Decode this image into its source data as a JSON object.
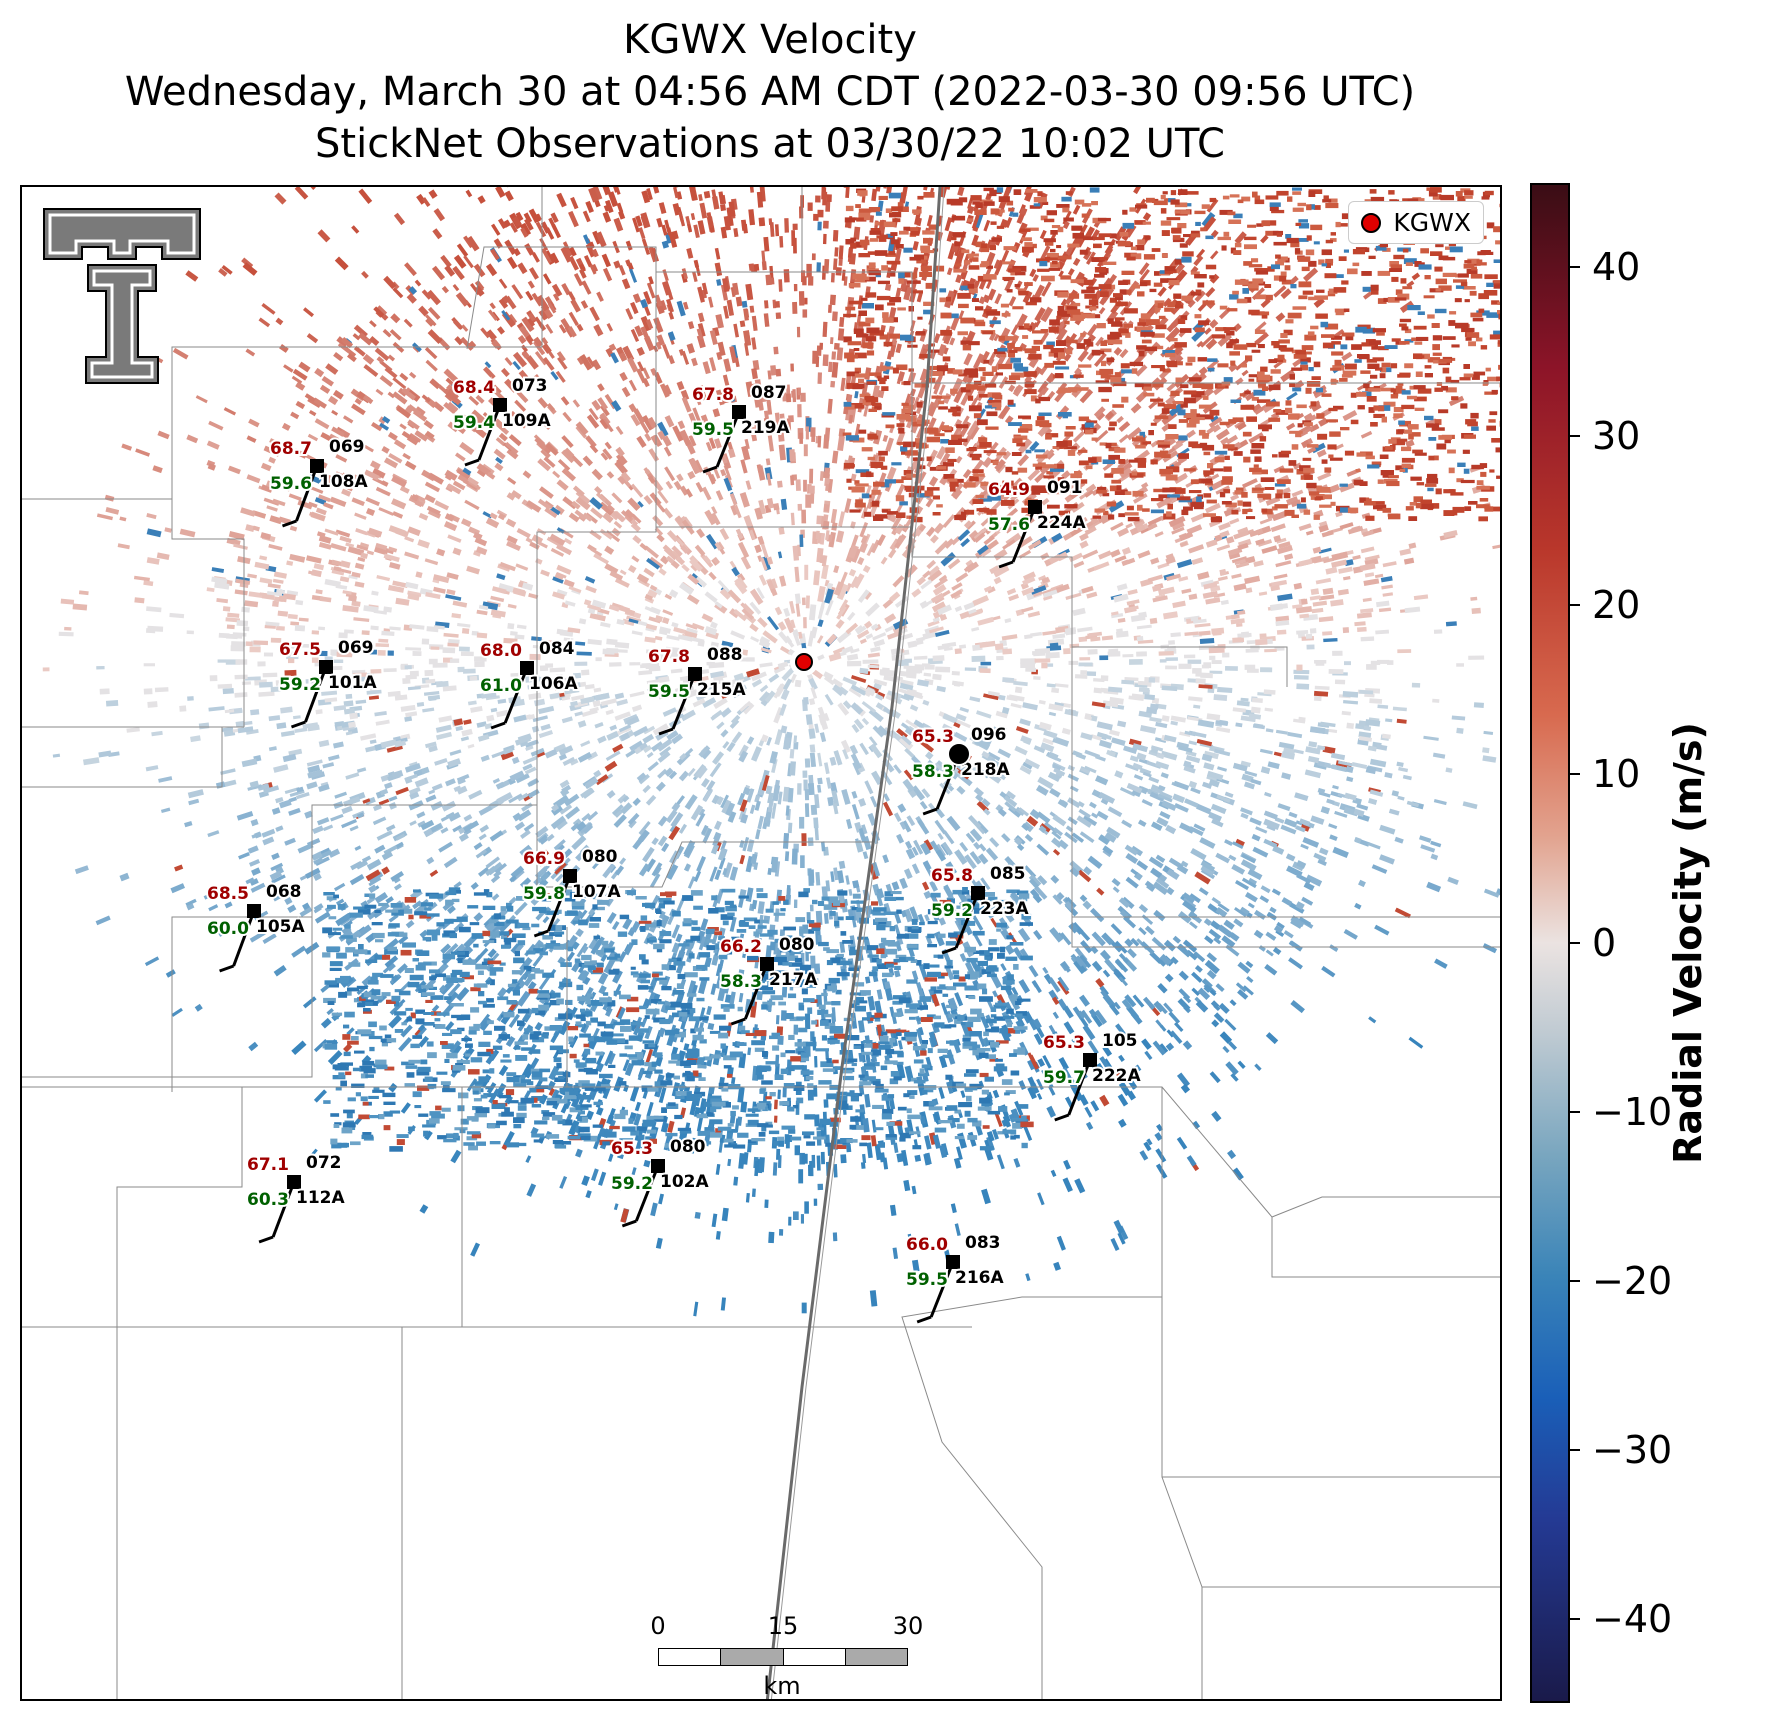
{
  "title": {
    "line1": "KGWX Velocity",
    "line2": "Wednesday, March 30 at 04:56 AM CDT (2022-03-30 09:56 UTC)",
    "line3": "StickNet Observations at 03/30/22 10:02 UTC"
  },
  "legend": {
    "label": "KGWX",
    "marker_color": "#e00000"
  },
  "logo": {
    "name": "texas-tech-double-t-logo"
  },
  "radar": {
    "name": "KGWX",
    "shown_in_legend": true
  },
  "colors": {
    "temp_text": "#a00000",
    "dewpoint_text": "#006000",
    "station_text": "#000000"
  },
  "colorbar": {
    "title": "Radial Velocity (m/s)",
    "min": -45,
    "max": 45,
    "ticks": [
      {
        "value": 40,
        "label": "40"
      },
      {
        "value": 30,
        "label": "30"
      },
      {
        "value": 20,
        "label": "20"
      },
      {
        "value": 10,
        "label": "10"
      },
      {
        "value": 0,
        "label": "0"
      },
      {
        "value": -10,
        "label": "−10"
      },
      {
        "value": -20,
        "label": "−20"
      },
      {
        "value": -30,
        "label": "−30"
      },
      {
        "value": -40,
        "label": "−40"
      }
    ]
  },
  "scalebar": {
    "ticks": [
      "0",
      "15",
      "30"
    ],
    "unit": "km"
  },
  "stations": [
    {
      "id": "109A",
      "temp": "68.4",
      "dewpoint": "59.4",
      "wind_dir": "073"
    },
    {
      "id": "219A",
      "temp": "67.8",
      "dewpoint": "59.5",
      "wind_dir": "087"
    },
    {
      "id": "108A",
      "temp": "68.7",
      "dewpoint": "59.6",
      "wind_dir": "069"
    },
    {
      "id": "224A",
      "temp": "64.9",
      "dewpoint": "57.6",
      "wind_dir": "091"
    },
    {
      "id": "101A",
      "temp": "67.5",
      "dewpoint": "59.2",
      "wind_dir": "069"
    },
    {
      "id": "106A",
      "temp": "68.0",
      "dewpoint": "61.0",
      "wind_dir": "084"
    },
    {
      "id": "215A",
      "temp": "67.8",
      "dewpoint": "59.5",
      "wind_dir": "088"
    },
    {
      "id": "218A",
      "temp": "65.3",
      "dewpoint": "58.3",
      "wind_dir": "096"
    },
    {
      "id": "107A",
      "temp": "66.9",
      "dewpoint": "59.8",
      "wind_dir": "080"
    },
    {
      "id": "223A",
      "temp": "65.8",
      "dewpoint": "59.2",
      "wind_dir": "085"
    },
    {
      "id": "105A",
      "temp": "68.5",
      "dewpoint": "60.0",
      "wind_dir": "068"
    },
    {
      "id": "217A",
      "temp": "66.2",
      "dewpoint": "58.3",
      "wind_dir": "080"
    },
    {
      "id": "222A",
      "temp": "65.3",
      "dewpoint": "59.7",
      "wind_dir": "105"
    },
    {
      "id": "112A",
      "temp": "67.1",
      "dewpoint": "60.3",
      "wind_dir": "072"
    },
    {
      "id": "102A",
      "temp": "65.3",
      "dewpoint": "59.2",
      "wind_dir": "080"
    },
    {
      "id": "216A",
      "temp": "66.0",
      "dewpoint": "59.5",
      "wind_dir": "083"
    }
  ]
}
